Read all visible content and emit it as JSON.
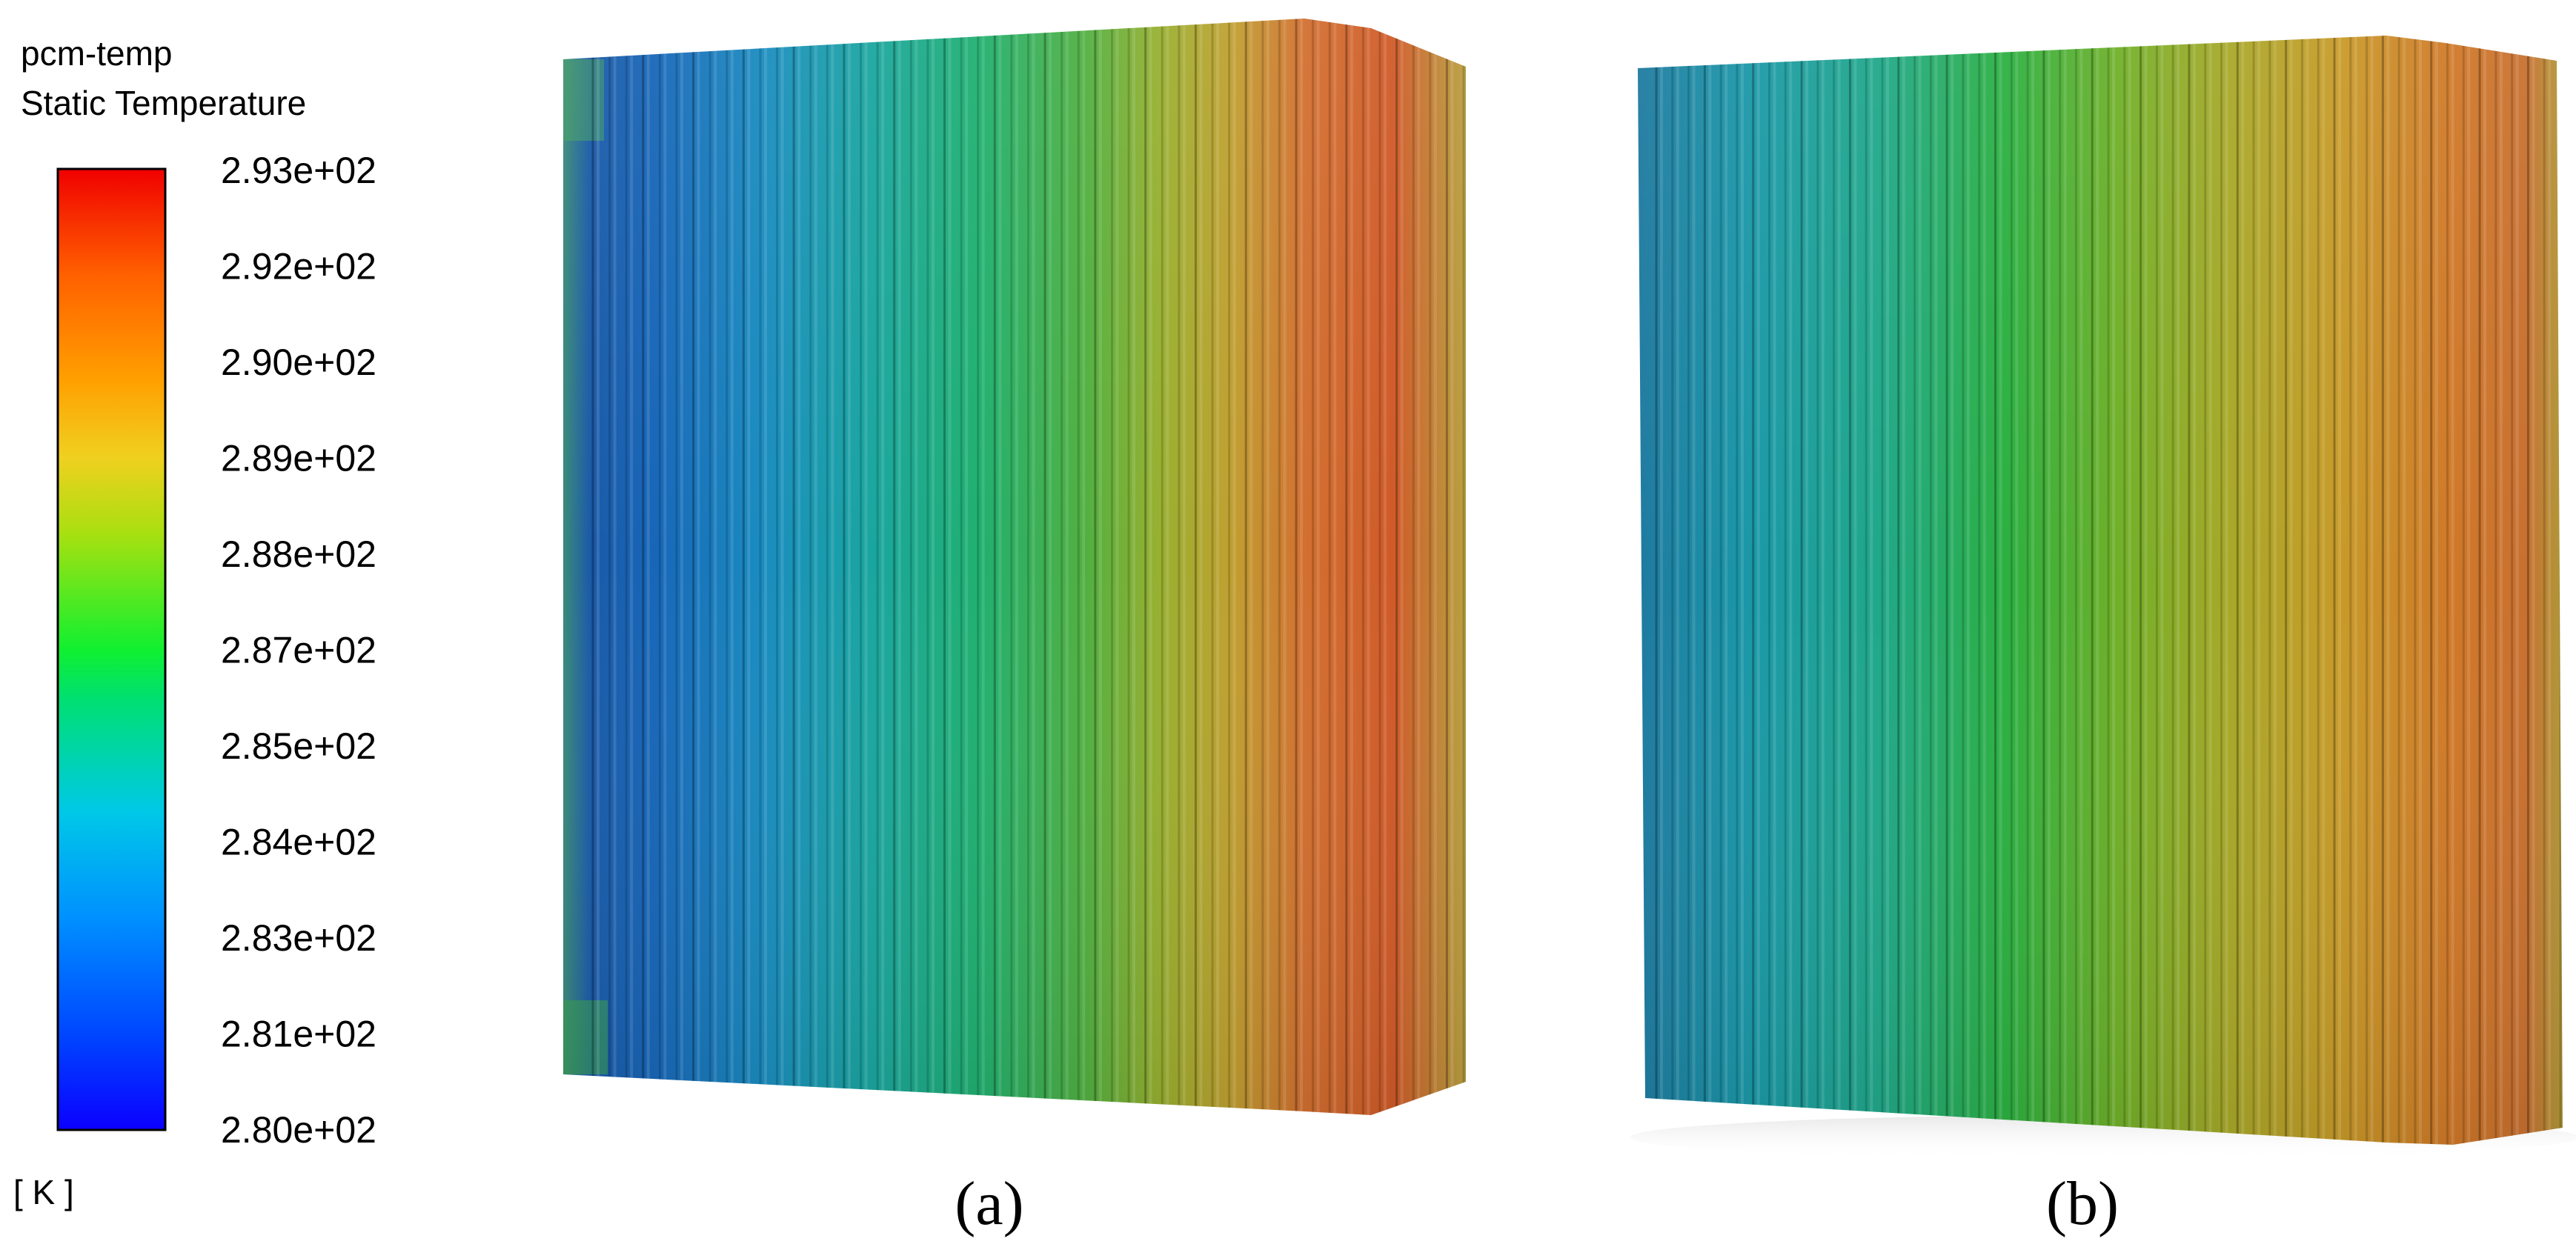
{
  "legend": {
    "title_line1": "pcm-temp",
    "title_line2": "Static Temperature",
    "ticks": [
      "2.93e+02",
      "2.92e+02",
      "2.90e+02",
      "2.89e+02",
      "2.88e+02",
      "2.87e+02",
      "2.85e+02",
      "2.84e+02",
      "2.83e+02",
      "2.81e+02",
      "2.80e+02"
    ],
    "unit": "[ K ]",
    "colors": [
      "#0000ff",
      "#0080ff",
      "#00e0ff",
      "#00ff40",
      "#b0ff00",
      "#ffe000",
      "#ff8000",
      "#ff0000"
    ]
  },
  "panels": [
    {
      "label": "(a)"
    },
    {
      "label": "(b)"
    }
  ]
}
